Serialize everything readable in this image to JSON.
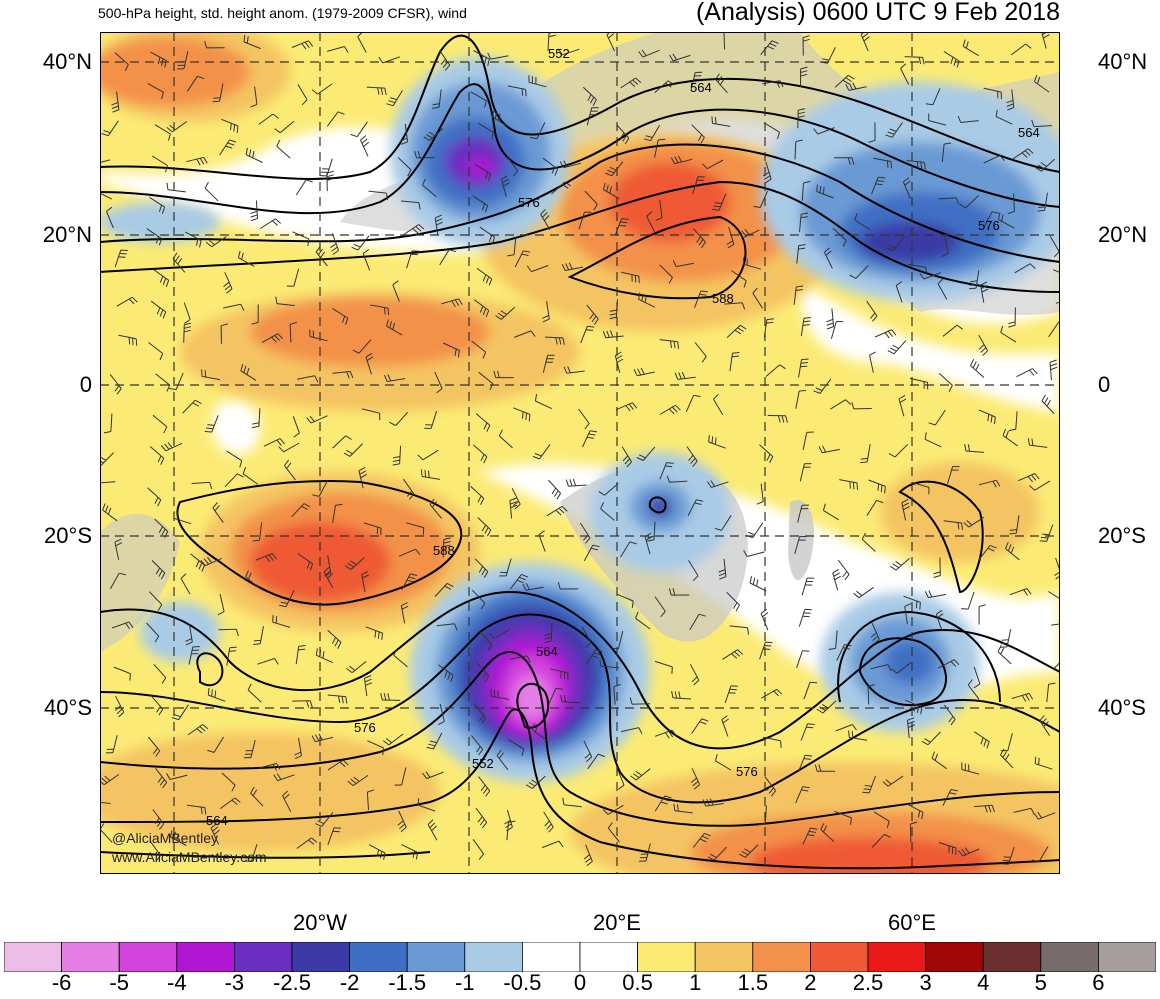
{
  "header": {
    "left_title": "500-hPa height, std. height anom. (1979-2009 CFSR), wind",
    "right_title": "(Analysis) 0600 UTC 9 Feb 2018"
  },
  "axes": {
    "lat_labels": [
      "40°N",
      "20°N",
      "0",
      "20°S",
      "40°S"
    ],
    "lon_labels": [
      "20°W",
      "20°E",
      "60°E"
    ]
  },
  "contour_labels": [
    "552",
    "564",
    "564",
    "576",
    "576",
    "588",
    "588",
    "564",
    "576",
    "576",
    "552",
    "564"
  ],
  "credits": [
    "@AliciaMBentley",
    "www.AliciaMBentley.com"
  ],
  "legend": {
    "labels": [
      "-6",
      "-5",
      "-4",
      "-3",
      "-2.5",
      "-2",
      "-1.5",
      "-1",
      "-0.5",
      "0",
      "0.5",
      "1",
      "1.5",
      "2",
      "2.5",
      "3",
      "4",
      "5",
      "6"
    ],
    "colors": [
      "#ecbde9",
      "#e57fe6",
      "#d343dd",
      "#af17d3",
      "#6a2ec0",
      "#3b3aa6",
      "#3f6fc4",
      "#6a9ad4",
      "#a9cbe6",
      "#ffffff",
      "#ffffff",
      "#fbeb75",
      "#f4c462",
      "#f3914a",
      "#ef5a35",
      "#ea1a1a",
      "#a00808",
      "#6b2f2f",
      "#786b6b",
      "#a69d9d"
    ]
  },
  "colors": {
    "land": "#c8c8c8",
    "ocean_base": "#ffffff",
    "contour": "#000000",
    "grid": "#333333"
  }
}
